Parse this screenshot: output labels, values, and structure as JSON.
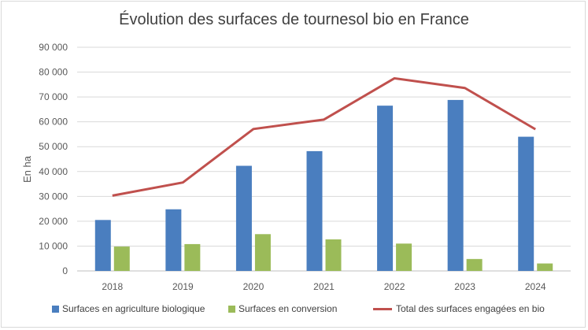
{
  "chart_data": {
    "type": "bar",
    "title": "Évolution des surfaces de tournesol bio en France",
    "ylabel": "En ha",
    "xlabel": "",
    "ylim": [
      0,
      90000
    ],
    "yticks": [
      "0",
      "10 000",
      "20 000",
      "30 000",
      "40 000",
      "50 000",
      "60 000",
      "70 000",
      "80 000",
      "90 000"
    ],
    "grid": true,
    "legend": "bottom",
    "categories": [
      "2018",
      "2019",
      "2020",
      "2021",
      "2022",
      "2023",
      "2024"
    ],
    "series": [
      {
        "name": "Surfaces en agriculture biologique",
        "type": "bar",
        "color": "#4a7ebf",
        "values": [
          20500,
          24800,
          42300,
          48200,
          66500,
          68800,
          54000
        ]
      },
      {
        "name": "Surfaces en conversion",
        "type": "bar",
        "color": "#9bbb59",
        "values": [
          9800,
          10800,
          14800,
          12700,
          11000,
          4800,
          3000
        ]
      },
      {
        "name": "Total des surfaces engagées en bio",
        "type": "line",
        "color": "#c0504d",
        "values": [
          30300,
          35600,
          57100,
          60900,
          77500,
          73600,
          57000
        ]
      }
    ]
  }
}
